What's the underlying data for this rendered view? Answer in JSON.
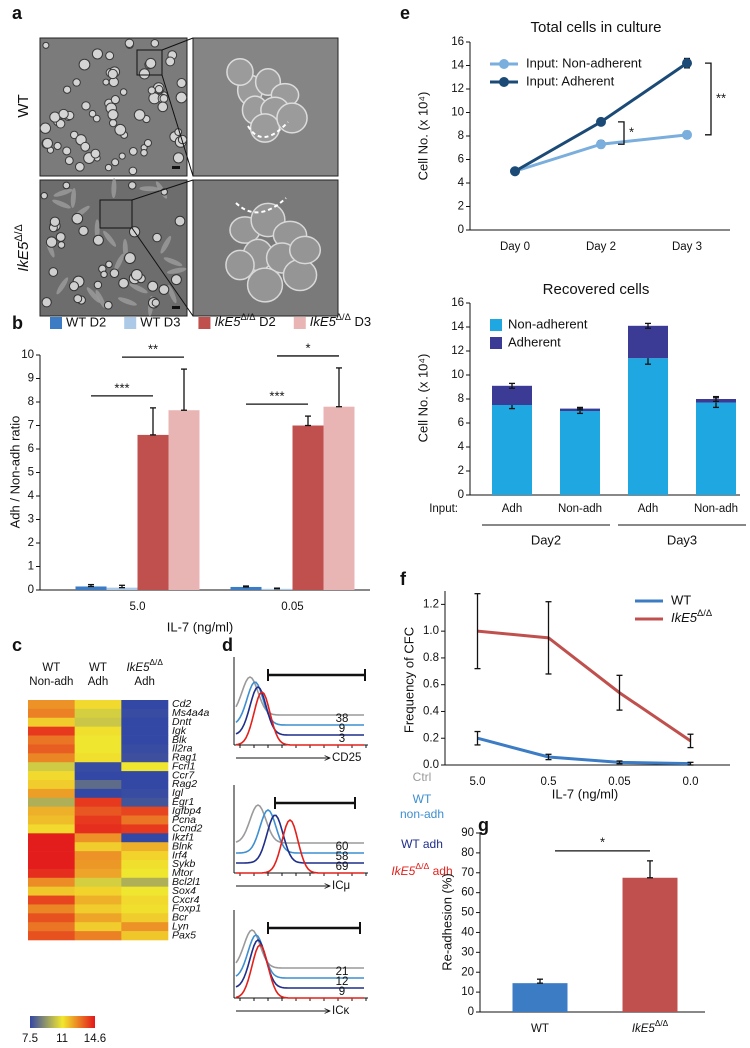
{
  "panel_a": {
    "label": "a",
    "rows": [
      "WT",
      "IkE5Δ/Δ"
    ]
  },
  "panel_c": {
    "label": "c",
    "columns": [
      [
        "WT",
        "Non-adh"
      ],
      [
        "WT",
        "Adh"
      ],
      [
        "IkE5Δ/Δ",
        "Adh"
      ]
    ],
    "genes": [
      "Cd2",
      "Ms4a4a",
      "Dntt",
      "Igk",
      "Blk",
      "Il2ra",
      "Rag1",
      "Fcrl1",
      "Ccr7",
      "Rag2",
      "Igl",
      "Egr1",
      "Igfbp4",
      "Pcna",
      "Ccnd2",
      "Ikzf1",
      "Blnk",
      "Irf4",
      "Sykb",
      "Mtor",
      "Bcl2l1",
      "Sox4",
      "Cxcr4",
      "Foxp1",
      "Bcr",
      "Lyn",
      "Pax5"
    ],
    "values": [
      [
        12.5,
        11.3,
        7.5
      ],
      [
        12.8,
        10.5,
        7.6
      ],
      [
        11.5,
        10.3,
        7.5
      ],
      [
        14.0,
        11.2,
        7.5
      ],
      [
        13.0,
        11.0,
        7.5
      ],
      [
        13.4,
        11.0,
        7.6
      ],
      [
        12.7,
        11.2,
        7.7
      ],
      [
        10.4,
        7.6,
        11.0
      ],
      [
        11.3,
        7.5,
        7.5
      ],
      [
        11.5,
        8.3,
        7.5
      ],
      [
        12.3,
        7.5,
        7.6
      ],
      [
        9.8,
        14.0,
        7.8
      ],
      [
        12.0,
        13.5,
        13.8
      ],
      [
        11.8,
        14.0,
        13.0
      ],
      [
        11.3,
        14.2,
        14.0
      ],
      [
        14.5,
        12.5,
        7.5
      ],
      [
        14.5,
        11.5,
        12.0
      ],
      [
        14.5,
        12.5,
        11.4
      ],
      [
        14.5,
        12.4,
        11.2
      ],
      [
        14.2,
        12.2,
        11.0
      ],
      [
        12.6,
        10.5,
        9.8
      ],
      [
        11.6,
        11.4,
        11.0
      ],
      [
        13.8,
        12.0,
        11.3
      ],
      [
        12.7,
        11.5,
        11.2
      ],
      [
        13.6,
        12.2,
        11.5
      ],
      [
        13.0,
        11.5,
        12.5
      ],
      [
        13.6,
        12.8,
        11.6
      ]
    ],
    "colorbar": {
      "range": [
        7.5,
        14.6
      ],
      "ticks": [
        7.5,
        11,
        14.6
      ],
      "colors": [
        "#3347a4",
        "#f2e82e",
        "#e3161b"
      ]
    }
  },
  "panel_d": {
    "label": "d",
    "legend": [
      "Ctrl",
      [
        "WT",
        "non-adh"
      ],
      "WT adh",
      "IkE5Δ/Δ adh"
    ],
    "colors": [
      "#9a9a9a",
      "#3d8fd0",
      "#1f2e8a",
      "#e3201b"
    ],
    "plots": [
      {
        "marker": "CD25",
        "percentages": [
          38,
          9,
          3
        ]
      },
      {
        "marker": "ICμ",
        "percentages": [
          60,
          58,
          69
        ]
      },
      {
        "marker": "ICκ",
        "percentages": [
          21,
          12,
          9
        ]
      }
    ]
  },
  "chart_data": [
    {
      "panel": "b",
      "type": "bar",
      "ylabel": "Adh / Non-adh ratio",
      "xlabel": "IL-7 (ng/ml)",
      "categories": [
        "5.0",
        "0.05"
      ],
      "ylim": [
        0,
        10
      ],
      "yticks": [
        0,
        1,
        2,
        3,
        4,
        5,
        6,
        7,
        8,
        9,
        10
      ],
      "legend": "top",
      "series": [
        {
          "name": "WT D2",
          "color": "#3b7cc4",
          "values": [
            0.15,
            0.13
          ],
          "errors": [
            0.08,
            0.04
          ]
        },
        {
          "name": "WT D3",
          "color": "#adc9e8",
          "values": [
            0.1,
            0.05
          ],
          "errors": [
            0.1,
            0.03
          ]
        },
        {
          "name": "IkE5Δ/Δ D2",
          "color": "#c0504d",
          "values": [
            6.6,
            7.0
          ],
          "errors": [
            1.15,
            0.4
          ]
        },
        {
          "name": "IkE5Δ/Δ D3",
          "color": "#e8b5b4",
          "values": [
            7.65,
            7.8
          ],
          "errors": [
            1.75,
            1.65
          ]
        }
      ],
      "annotations": [
        {
          "text": "***",
          "category": 0,
          "series": [
            0,
            2
          ]
        },
        {
          "text": "**",
          "category": 0,
          "series": [
            1,
            3
          ]
        },
        {
          "text": "***",
          "category": 1,
          "series": [
            0,
            2
          ]
        },
        {
          "text": "*",
          "category": 1,
          "series": [
            1,
            3
          ]
        }
      ]
    },
    {
      "panel": "e",
      "type": "line",
      "title": "Total cells in culture",
      "ylabel": "Cell No. (x 10⁴)",
      "categories": [
        "Day 0",
        "Day 2",
        "Day 3"
      ],
      "ylim": [
        0,
        16
      ],
      "yticks": [
        0,
        2,
        4,
        6,
        8,
        10,
        12,
        14,
        16
      ],
      "legend": "upper left",
      "markers": true,
      "series": [
        {
          "name": "Input: Non-adherent",
          "color": "#7aaedc",
          "values": [
            5,
            7.3,
            8.1
          ],
          "errors": [
            0.15,
            0.3,
            0.3
          ]
        },
        {
          "name": "Input: Adherent",
          "color": "#1a4a75",
          "values": [
            5,
            9.2,
            14.2
          ],
          "errors": [
            0.15,
            0.2,
            0.4
          ]
        }
      ],
      "annotations": [
        {
          "text": "*",
          "category": 1
        },
        {
          "text": "**",
          "category": 2
        }
      ]
    },
    {
      "type": "bar",
      "stacked": true,
      "title": "Recovered cells",
      "ylabel": "Cell No. (x 10⁴)",
      "input_label": "Input:",
      "categories": [
        "Adh",
        "Non-adh",
        "Adh",
        "Non-adh"
      ],
      "groups": [
        "Day2",
        "Day3"
      ],
      "ylim": [
        0,
        16
      ],
      "yticks": [
        0,
        2,
        4,
        6,
        8,
        10,
        12,
        14,
        16
      ],
      "legend": "upper left",
      "series": [
        {
          "name": "Non-adherent",
          "color": "#1ea7e1",
          "values": [
            7.5,
            7.0,
            11.4,
            7.7
          ],
          "errors": [
            0.3,
            0.2,
            0.5,
            0.4
          ]
        },
        {
          "name": "Adherent",
          "color": "#3b3a94",
          "values": [
            1.6,
            0.2,
            2.7,
            0.3
          ],
          "errors": [
            0.2,
            0.1,
            0.2,
            0.2
          ]
        }
      ]
    },
    {
      "panel": "f",
      "type": "line",
      "ylabel": "Frequency of CFC",
      "xlabel": "IL-7 (ng/ml)",
      "categories": [
        "5.0",
        "0.5",
        "0.05",
        "0.0"
      ],
      "ylim": [
        0,
        1.3
      ],
      "yticks": [
        {
          "value": 0,
          "label": "0.0"
        },
        0.2,
        0.4,
        0.6,
        0.8,
        {
          "value": 1,
          "label": "1.0"
        },
        1.2
      ],
      "legend": "upper right",
      "series": [
        {
          "name": "WT",
          "color": "#3b7cc4",
          "values": [
            0.2,
            0.06,
            0.02,
            0.01
          ],
          "errors": [
            0.05,
            0.02,
            0.01,
            0.01
          ]
        },
        {
          "name": "IkE5Δ/Δ",
          "color": "#c0504d",
          "values": [
            1.0,
            0.95,
            0.54,
            0.18
          ],
          "errors": [
            0.28,
            0.27,
            0.13,
            0.05
          ]
        }
      ]
    },
    {
      "panel": "g",
      "type": "bar",
      "ylabel": "Re-adhesion (%)",
      "categories": [
        "WT",
        "IkE5Δ/Δ"
      ],
      "values": [
        14.5,
        67.5
      ],
      "errors": [
        2,
        8.5
      ],
      "colors": [
        "#3b7cc4",
        "#c0504d"
      ],
      "ylim": [
        0,
        90
      ],
      "yticks": [
        0,
        10,
        20,
        30,
        40,
        50,
        60,
        70,
        80,
        90
      ],
      "annotations": [
        {
          "text": "*",
          "categories": [
            0,
            1
          ]
        }
      ]
    }
  ]
}
